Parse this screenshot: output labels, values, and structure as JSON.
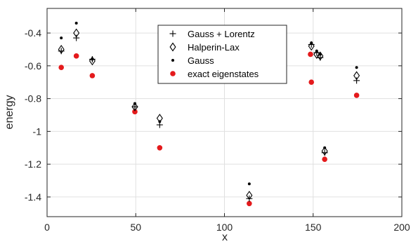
{
  "chart_data": {
    "type": "scatter",
    "xlabel": "x",
    "ylabel": "energy",
    "xlim": [
      0,
      200
    ],
    "ylim": [
      -1.52,
      -0.25
    ],
    "xticks": [
      0,
      50,
      100,
      150,
      200
    ],
    "yticks": [
      -1.4,
      -1.2,
      -1,
      -0.8,
      -0.6,
      -0.4
    ],
    "xtick_labels": [
      "0",
      "50",
      "100",
      "150",
      "200"
    ],
    "ytick_labels": [
      "-1.4",
      "-1.2",
      "-1",
      "-0.8",
      "-0.6",
      "-0.4"
    ],
    "grid": true,
    "legend_position": "top-center",
    "series": [
      {
        "name": "Gauss + Lorentz",
        "marker": "plus",
        "color": "#000000",
        "points": [
          [
            8,
            -0.51
          ],
          [
            16.5,
            -0.43
          ],
          [
            25.5,
            -0.56
          ],
          [
            49.5,
            -0.85
          ],
          [
            63.5,
            -0.96
          ],
          [
            114,
            -1.41
          ],
          [
            149,
            -0.47
          ],
          [
            152,
            -0.52
          ],
          [
            154,
            -0.55
          ],
          [
            156.5,
            -1.13
          ],
          [
            174.5,
            -0.69
          ]
        ]
      },
      {
        "name": "Halperin-Lax",
        "marker": "diamond",
        "color": "#000000",
        "points": [
          [
            8,
            -0.5
          ],
          [
            16.5,
            -0.4
          ],
          [
            25.5,
            -0.57
          ],
          [
            49.5,
            -0.85
          ],
          [
            63.5,
            -0.92
          ],
          [
            114,
            -1.39
          ],
          [
            149,
            -0.48
          ],
          [
            152,
            -0.53
          ],
          [
            154,
            -0.54
          ],
          [
            156.5,
            -1.12
          ],
          [
            174.5,
            -0.66
          ]
        ]
      },
      {
        "name": "Gauss",
        "marker": "dot",
        "color": "#000000",
        "points": [
          [
            8,
            -0.43
          ],
          [
            16.5,
            -0.34
          ],
          [
            25.5,
            -0.56
          ],
          [
            49.5,
            -0.83
          ],
          [
            63.5,
            -0.94
          ],
          [
            114,
            -1.32
          ],
          [
            149,
            -0.46
          ],
          [
            152,
            -0.51
          ],
          [
            154,
            -0.53
          ],
          [
            156.5,
            -1.1
          ],
          [
            174.5,
            -0.61
          ]
        ]
      },
      {
        "name": "exact eigenstates",
        "marker": "filled-circle",
        "color": "#e41a1c",
        "points": [
          [
            8,
            -0.61
          ],
          [
            16.5,
            -0.54
          ],
          [
            25.5,
            -0.66
          ],
          [
            49.5,
            -0.88
          ],
          [
            63.5,
            -1.1
          ],
          [
            114,
            -1.44
          ],
          [
            149,
            -0.7
          ],
          [
            148.5,
            -0.53
          ],
          [
            156.5,
            -1.17
          ],
          [
            174.5,
            -0.78
          ]
        ]
      }
    ]
  }
}
